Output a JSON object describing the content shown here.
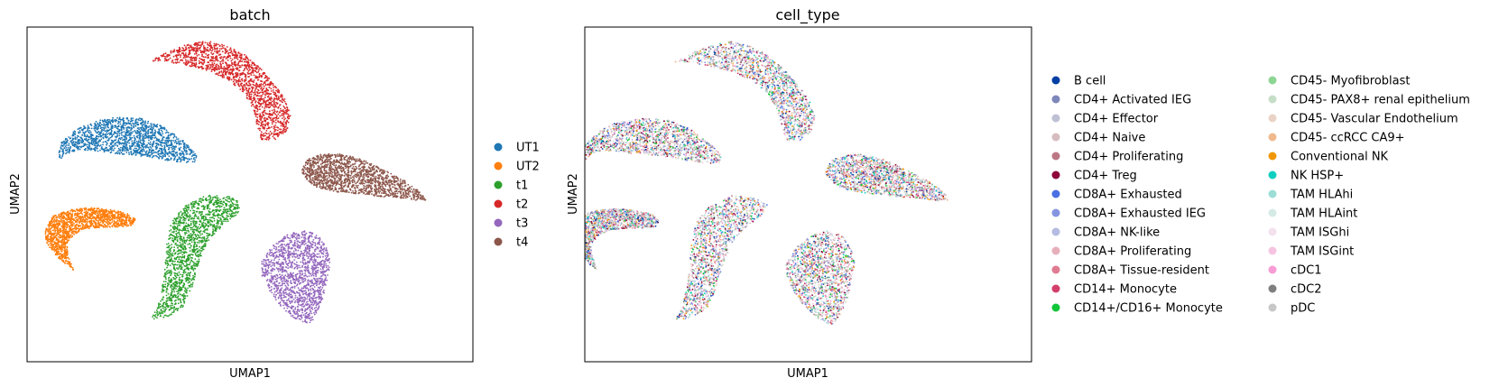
{
  "chart_data": [
    {
      "type": "scatter",
      "title": "batch",
      "xlabel": "UMAP1",
      "ylabel": "UMAP2",
      "xticks": false,
      "yticks": false,
      "grid": false,
      "legend_placement": "right",
      "series": [
        {
          "name": "UT1",
          "color": "#1f77b4"
        },
        {
          "name": "UT2",
          "color": "#ff7f0e"
        },
        {
          "name": "t1",
          "color": "#2ca02c"
        },
        {
          "name": "t2",
          "color": "#d62728"
        },
        {
          "name": "t3",
          "color": "#9467bd"
        },
        {
          "name": "t4",
          "color": "#8c564b"
        }
      ]
    },
    {
      "type": "scatter",
      "title": "cell_type",
      "xlabel": "UMAP1",
      "ylabel": "UMAP2",
      "xticks": false,
      "yticks": false,
      "grid": false,
      "legend_placement": "right",
      "legend_columns": 2,
      "series": [
        {
          "name": "B cell",
          "color": "#023fa5"
        },
        {
          "name": "CD4+ Activated IEG",
          "color": "#7d87b9"
        },
        {
          "name": "CD4+ Effector",
          "color": "#bec1d4"
        },
        {
          "name": "CD4+ Naive",
          "color": "#d6bcc0"
        },
        {
          "name": "CD4+ Proliferating",
          "color": "#bb7784"
        },
        {
          "name": "CD4+ Treg",
          "color": "#8e063b"
        },
        {
          "name": "CD8A+ Exhausted",
          "color": "#4a6fe3"
        },
        {
          "name": "CD8A+ Exhausted IEG",
          "color": "#8595e1"
        },
        {
          "name": "CD8A+ NK-like",
          "color": "#b5bbe3"
        },
        {
          "name": "CD8A+ Proliferating",
          "color": "#e6afb9"
        },
        {
          "name": "CD8A+ Tissue-resident",
          "color": "#e07b91"
        },
        {
          "name": "CD14+ Monocyte",
          "color": "#d33f6a"
        },
        {
          "name": "CD14+/CD16+ Monocyte",
          "color": "#11c638"
        },
        {
          "name": "CD45- Myofibroblast",
          "color": "#8dd593"
        },
        {
          "name": "CD45- PAX8+ renal epithelium",
          "color": "#c6dec7"
        },
        {
          "name": "CD45- Vascular Endothelium",
          "color": "#ead3c6"
        },
        {
          "name": "CD45- ccRCC CA9+",
          "color": "#f0b98d"
        },
        {
          "name": "Conventional NK",
          "color": "#ef9708"
        },
        {
          "name": "NK HSP+",
          "color": "#0fcfc0"
        },
        {
          "name": "TAM HLAhi",
          "color": "#9cded6"
        },
        {
          "name": "TAM HLAint",
          "color": "#d5eae7"
        },
        {
          "name": "TAM ISGhi",
          "color": "#f3e1eb"
        },
        {
          "name": "TAM ISGint",
          "color": "#f6c4e1"
        },
        {
          "name": "cDC1",
          "color": "#f79cd4"
        },
        {
          "name": "cDC2",
          "color": "#7f7f7f"
        },
        {
          "name": "pDC",
          "color": "#c7c7c7"
        }
      ]
    }
  ]
}
